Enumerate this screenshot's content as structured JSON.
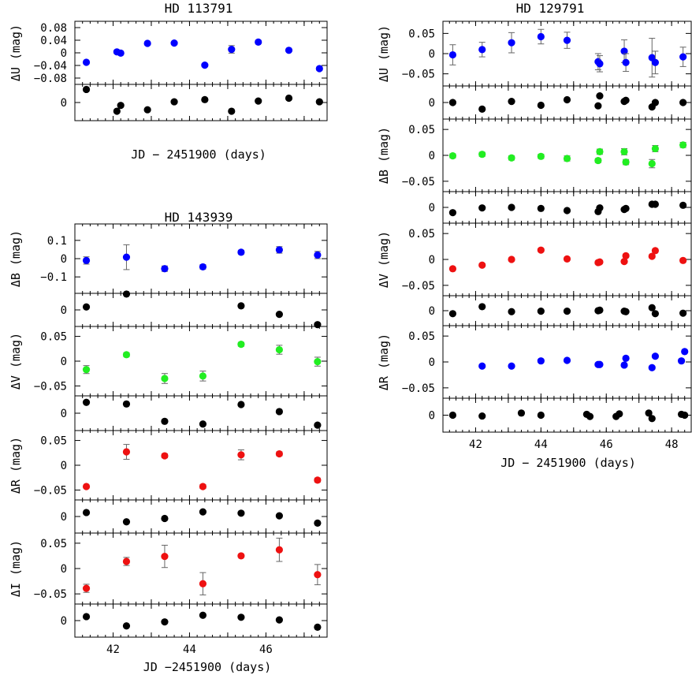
{
  "chart_data": [
    {
      "type": "scatter",
      "title": "HD 113791",
      "xlabel": "JD − 2451900 (days)",
      "x_tick_labels": [],
      "panels": [
        {
          "ylabel": "ΔU (mag)",
          "ylim": [
            -0.1,
            0.1
          ],
          "y_ticks": [
            0.08,
            0.04,
            0,
            -0.04,
            -0.08
          ],
          "y_tick_labels": [
            "0.08",
            "0.04",
            "0",
            "−0.04",
            "−0.08"
          ],
          "marker_color": "#0000ff",
          "x": [
            41.3,
            42.1,
            42.2,
            42.9,
            43.6,
            44.4,
            45.1,
            45.8,
            46.6,
            47.4
          ],
          "y": [
            -0.03,
            0.003,
            -0.001,
            0.03,
            0.031,
            -0.039,
            0.011,
            0.034,
            0.008,
            -0.05
          ],
          "err": [
            0.004,
            0.005,
            0.004,
            0.004,
            0.004,
            0.004,
            0.012,
            0.005,
            0.004,
            0.005
          ]
        },
        {
          "ylabel": "",
          "ylim": [
            -0.025,
            0.025
          ],
          "y_ticks": [
            0
          ],
          "y_tick_labels": [
            "0"
          ],
          "marker_color": "#000000",
          "x": [
            41.3,
            42.1,
            42.2,
            42.9,
            43.6,
            44.4,
            45.1,
            45.8,
            46.6,
            47.4
          ],
          "y": [
            0.018,
            -0.012,
            -0.004,
            -0.01,
            0.001,
            0.004,
            -0.012,
            0.002,
            0.006,
            0.001
          ],
          "err": [
            0,
            0,
            0,
            0,
            0,
            0,
            0,
            0,
            0,
            0
          ]
        }
      ]
    },
    {
      "type": "scatter",
      "title": "HD 129791",
      "xlabel": "JD − 2451900 (days)",
      "x_tick_labels": [
        "42",
        "44",
        "46",
        "48"
      ],
      "panels": [
        {
          "ylabel": "ΔU (mag)",
          "ylim": [
            -0.08,
            0.08
          ],
          "y_ticks": [
            0.05,
            0,
            -0.05
          ],
          "y_tick_labels": [
            "0.05",
            "0",
            "−0.05"
          ],
          "marker_color": "#0000ff",
          "x": [
            41.3,
            42.2,
            43.1,
            44.0,
            44.8,
            45.75,
            45.8,
            46.55,
            46.6,
            47.4,
            47.5,
            48.35
          ],
          "y": [
            -0.003,
            0.01,
            0.027,
            0.042,
            0.033,
            -0.02,
            -0.025,
            0.006,
            -0.022,
            -0.01,
            -0.022,
            -0.008
          ],
          "err": [
            0.025,
            0.018,
            0.025,
            0.018,
            0.02,
            0.02,
            0.02,
            0.028,
            0.022,
            0.048,
            0.028,
            0.024
          ]
        },
        {
          "ylabel": "",
          "ylim": [
            -0.03,
            0.03
          ],
          "y_ticks": [
            0
          ],
          "y_tick_labels": [
            "0"
          ],
          "marker_color": "#000000",
          "x": [
            41.3,
            42.2,
            43.1,
            44.0,
            44.8,
            45.75,
            45.8,
            46.55,
            46.6,
            47.4,
            47.5,
            48.35
          ],
          "y": [
            0.0,
            -0.012,
            0.002,
            -0.005,
            0.005,
            -0.006,
            0.012,
            0.002,
            0.004,
            -0.008,
            0.0,
            0.0
          ],
          "err": [
            0,
            0,
            0,
            0,
            0,
            0,
            0,
            0,
            0,
            0,
            0,
            0
          ]
        },
        {
          "ylabel": "ΔB (mag)",
          "ylim": [
            -0.07,
            0.07
          ],
          "y_ticks": [
            0.05,
            0,
            -0.05
          ],
          "y_tick_labels": [
            "0.05",
            "0",
            "−0.05"
          ],
          "marker_color": "#22ee22",
          "x": [
            41.3,
            42.2,
            43.1,
            44.0,
            44.8,
            45.75,
            45.8,
            46.55,
            46.6,
            47.4,
            47.5,
            48.35
          ],
          "y": [
            -0.001,
            0.002,
            -0.005,
            -0.002,
            -0.006,
            -0.01,
            0.007,
            0.007,
            -0.013,
            -0.016,
            0.013,
            0.02
          ],
          "err": [
            0.004,
            0.004,
            0.004,
            0.004,
            0.005,
            0.004,
            0.005,
            0.006,
            0.005,
            0.008,
            0.006,
            0.005
          ]
        },
        {
          "ylabel": "",
          "ylim": [
            -0.03,
            0.03
          ],
          "y_ticks": [
            0
          ],
          "y_tick_labels": [
            "0"
          ],
          "marker_color": "#000000",
          "x": [
            41.3,
            42.2,
            43.1,
            44.0,
            44.8,
            45.75,
            45.8,
            46.55,
            46.6,
            47.4,
            47.5,
            48.35
          ],
          "y": [
            -0.01,
            -0.001,
            0.0,
            -0.002,
            -0.006,
            -0.008,
            -0.001,
            -0.004,
            -0.002,
            0.006,
            0.006,
            0.004
          ],
          "err": [
            0,
            0,
            0,
            0,
            0,
            0,
            0,
            0,
            0,
            0,
            0,
            0
          ]
        },
        {
          "ylabel": "ΔV (mag)",
          "ylim": [
            -0.07,
            0.07
          ],
          "y_ticks": [
            0.05,
            0,
            -0.05
          ],
          "y_tick_labels": [
            "0.05",
            "0",
            "−0.05"
          ],
          "marker_color": "#ee1111",
          "x": [
            41.3,
            42.2,
            43.1,
            44.0,
            44.8,
            45.75,
            45.8,
            46.55,
            46.6,
            47.4,
            47.5,
            48.35
          ],
          "y": [
            -0.018,
            -0.011,
            0.0,
            0.018,
            0.001,
            -0.006,
            -0.005,
            -0.004,
            0.007,
            0.006,
            0.017,
            -0.002
          ],
          "err": [
            0.003,
            0.003,
            0.003,
            0.003,
            0.003,
            0.003,
            0.003,
            0.003,
            0.003,
            0.003,
            0.003,
            0.003
          ]
        },
        {
          "ylabel": "",
          "ylim": [
            -0.03,
            0.03
          ],
          "y_ticks": [
            0
          ],
          "y_tick_labels": [
            "0"
          ],
          "marker_color": "#000000",
          "x": [
            41.3,
            42.2,
            43.1,
            44.0,
            44.8,
            45.75,
            45.8,
            46.55,
            46.6,
            47.4,
            47.5,
            48.35
          ],
          "y": [
            -0.006,
            0.008,
            -0.002,
            -0.001,
            -0.001,
            0.0,
            0.001,
            -0.001,
            -0.002,
            0.006,
            -0.006,
            -0.005
          ],
          "err": [
            0,
            0,
            0,
            0,
            0,
            0,
            0,
            0,
            0,
            0,
            0,
            0
          ]
        },
        {
          "ylabel": "ΔR (mag)",
          "ylim": [
            -0.07,
            0.07
          ],
          "y_ticks": [
            0.05,
            0,
            -0.05
          ],
          "y_tick_labels": [
            "0.05",
            "0",
            "−0.05"
          ],
          "marker_color": "#0000ff",
          "x": [
            42.2,
            43.1,
            44.0,
            44.8,
            45.75,
            45.8,
            46.55,
            46.6,
            47.4,
            47.5,
            48.3,
            48.4
          ],
          "y": [
            -0.008,
            -0.008,
            0.002,
            0.003,
            -0.005,
            -0.005,
            -0.006,
            0.007,
            -0.011,
            0.011,
            0.002,
            0.02
          ],
          "err": [
            0.003,
            0.003,
            0.003,
            0.003,
            0.003,
            0.003,
            0.003,
            0.003,
            0.003,
            0.003,
            0.003,
            0.003
          ]
        },
        {
          "ylabel": "",
          "ylim": [
            -0.04,
            0.04
          ],
          "y_ticks": [
            0
          ],
          "y_tick_labels": [
            "0"
          ],
          "marker_color": "#000000",
          "x": [
            41.3,
            42.2,
            43.4,
            44.0,
            45.4,
            45.5,
            46.3,
            46.4,
            47.3,
            47.4,
            48.3,
            48.4
          ],
          "y": [
            0.0,
            -0.002,
            0.005,
            0.0,
            0.002,
            -0.003,
            -0.003,
            0.003,
            0.005,
            -0.008,
            0.002,
            0.0
          ],
          "err": [
            0,
            0,
            0,
            0,
            0,
            0,
            0,
            0,
            0,
            0,
            0,
            0
          ]
        }
      ]
    },
    {
      "type": "scatter",
      "title": "HD 143939",
      "xlabel": "JD −2451900 (days)",
      "x_tick_labels": [
        "42",
        "44",
        "46"
      ],
      "panels": [
        {
          "ylabel": "ΔB (mag)",
          "ylim": [
            -0.19,
            0.19
          ],
          "y_ticks": [
            0.1,
            0,
            -0.1
          ],
          "y_tick_labels": [
            "0.1",
            "0",
            "−0.1"
          ],
          "marker_color": "#0000ff",
          "x": [
            41.3,
            42.35,
            43.35,
            44.35,
            45.35,
            46.35,
            47.35
          ],
          "y": [
            -0.01,
            0.008,
            -0.055,
            -0.045,
            0.035,
            0.048,
            0.02
          ],
          "err": [
            0.02,
            0.068,
            0.015,
            0.012,
            0.01,
            0.018,
            0.02
          ]
        },
        {
          "ylabel": "",
          "ylim": [
            -0.045,
            0.045
          ],
          "y_ticks": [
            0
          ],
          "y_tick_labels": [
            "0"
          ],
          "marker_color": "#000000",
          "x": [
            41.3,
            42.35,
            45.35,
            46.35,
            47.35
          ],
          "y": [
            0.008,
            0.043,
            0.011,
            -0.012,
            -0.04
          ],
          "err": [
            0,
            0,
            0,
            0,
            0
          ]
        },
        {
          "ylabel": "ΔV (mag)",
          "ylim": [
            -0.07,
            0.07
          ],
          "y_ticks": [
            0.05,
            0,
            -0.05
          ],
          "y_tick_labels": [
            "0.05",
            "0",
            "−0.05"
          ],
          "marker_color": "#22ee22",
          "x": [
            41.3,
            42.35,
            43.35,
            44.35,
            45.35,
            46.35,
            47.35
          ],
          "y": [
            -0.017,
            0.013,
            -0.035,
            -0.03,
            0.034,
            0.023,
            -0.001
          ],
          "err": [
            0.008,
            0.004,
            0.01,
            0.01,
            0.004,
            0.009,
            0.009
          ]
        },
        {
          "ylabel": "",
          "ylim": [
            -0.032,
            0.032
          ],
          "y_ticks": [
            0
          ],
          "y_tick_labels": [
            "0"
          ],
          "marker_color": "#000000",
          "x": [
            41.3,
            42.35,
            43.35,
            44.35,
            45.35,
            46.35,
            47.35
          ],
          "y": [
            0.02,
            0.017,
            -0.015,
            -0.02,
            0.016,
            0.003,
            -0.022
          ],
          "err": [
            0,
            0,
            0,
            0,
            0,
            0,
            0
          ]
        },
        {
          "ylabel": "ΔR (mag)",
          "ylim": [
            -0.07,
            0.07
          ],
          "y_ticks": [
            0.05,
            0,
            -0.05
          ],
          "y_tick_labels": [
            "0.05",
            "0",
            "−0.05"
          ],
          "marker_color": "#ee1111",
          "x": [
            41.3,
            42.35,
            43.35,
            44.35,
            45.35,
            46.35,
            47.35
          ],
          "y": [
            -0.043,
            0.027,
            0.019,
            -0.043,
            0.021,
            0.023,
            -0.03
          ],
          "err": [
            0.003,
            0.015,
            0.004,
            0.004,
            0.01,
            0.004,
            0.004
          ]
        },
        {
          "ylabel": "",
          "ylim": [
            -0.025,
            0.025
          ],
          "y_ticks": [
            0
          ],
          "y_tick_labels": [
            "0"
          ],
          "marker_color": "#000000",
          "x": [
            41.3,
            42.35,
            43.35,
            44.35,
            45.35,
            46.35,
            47.35
          ],
          "y": [
            0.006,
            -0.008,
            -0.003,
            0.007,
            0.005,
            0.001,
            -0.01
          ],
          "err": [
            0,
            0,
            0,
            0,
            0,
            0,
            0
          ]
        },
        {
          "ylabel": "ΔI (mag)",
          "ylim": [
            -0.07,
            0.07
          ],
          "y_ticks": [
            0.05,
            0,
            -0.05
          ],
          "y_tick_labels": [
            "0.05",
            "0",
            "−0.05"
          ],
          "marker_color": "#ee1111",
          "x": [
            41.3,
            42.35,
            43.35,
            44.35,
            45.35,
            46.35,
            47.35
          ],
          "y": [
            -0.039,
            0.014,
            0.024,
            -0.03,
            0.025,
            0.037,
            -0.012
          ],
          "err": [
            0.008,
            0.008,
            0.022,
            0.022,
            0.003,
            0.023,
            0.02
          ]
        },
        {
          "ylabel": "",
          "ylim": [
            -0.025,
            0.025
          ],
          "y_ticks": [
            0
          ],
          "y_tick_labels": [
            "0"
          ],
          "marker_color": "#000000",
          "x": [
            41.3,
            42.35,
            43.35,
            44.35,
            45.35,
            46.35,
            47.35
          ],
          "y": [
            0.006,
            -0.008,
            -0.002,
            0.008,
            0.005,
            0.001,
            -0.01
          ],
          "err": [
            0,
            0,
            0,
            0,
            0,
            0,
            0
          ]
        }
      ]
    }
  ]
}
